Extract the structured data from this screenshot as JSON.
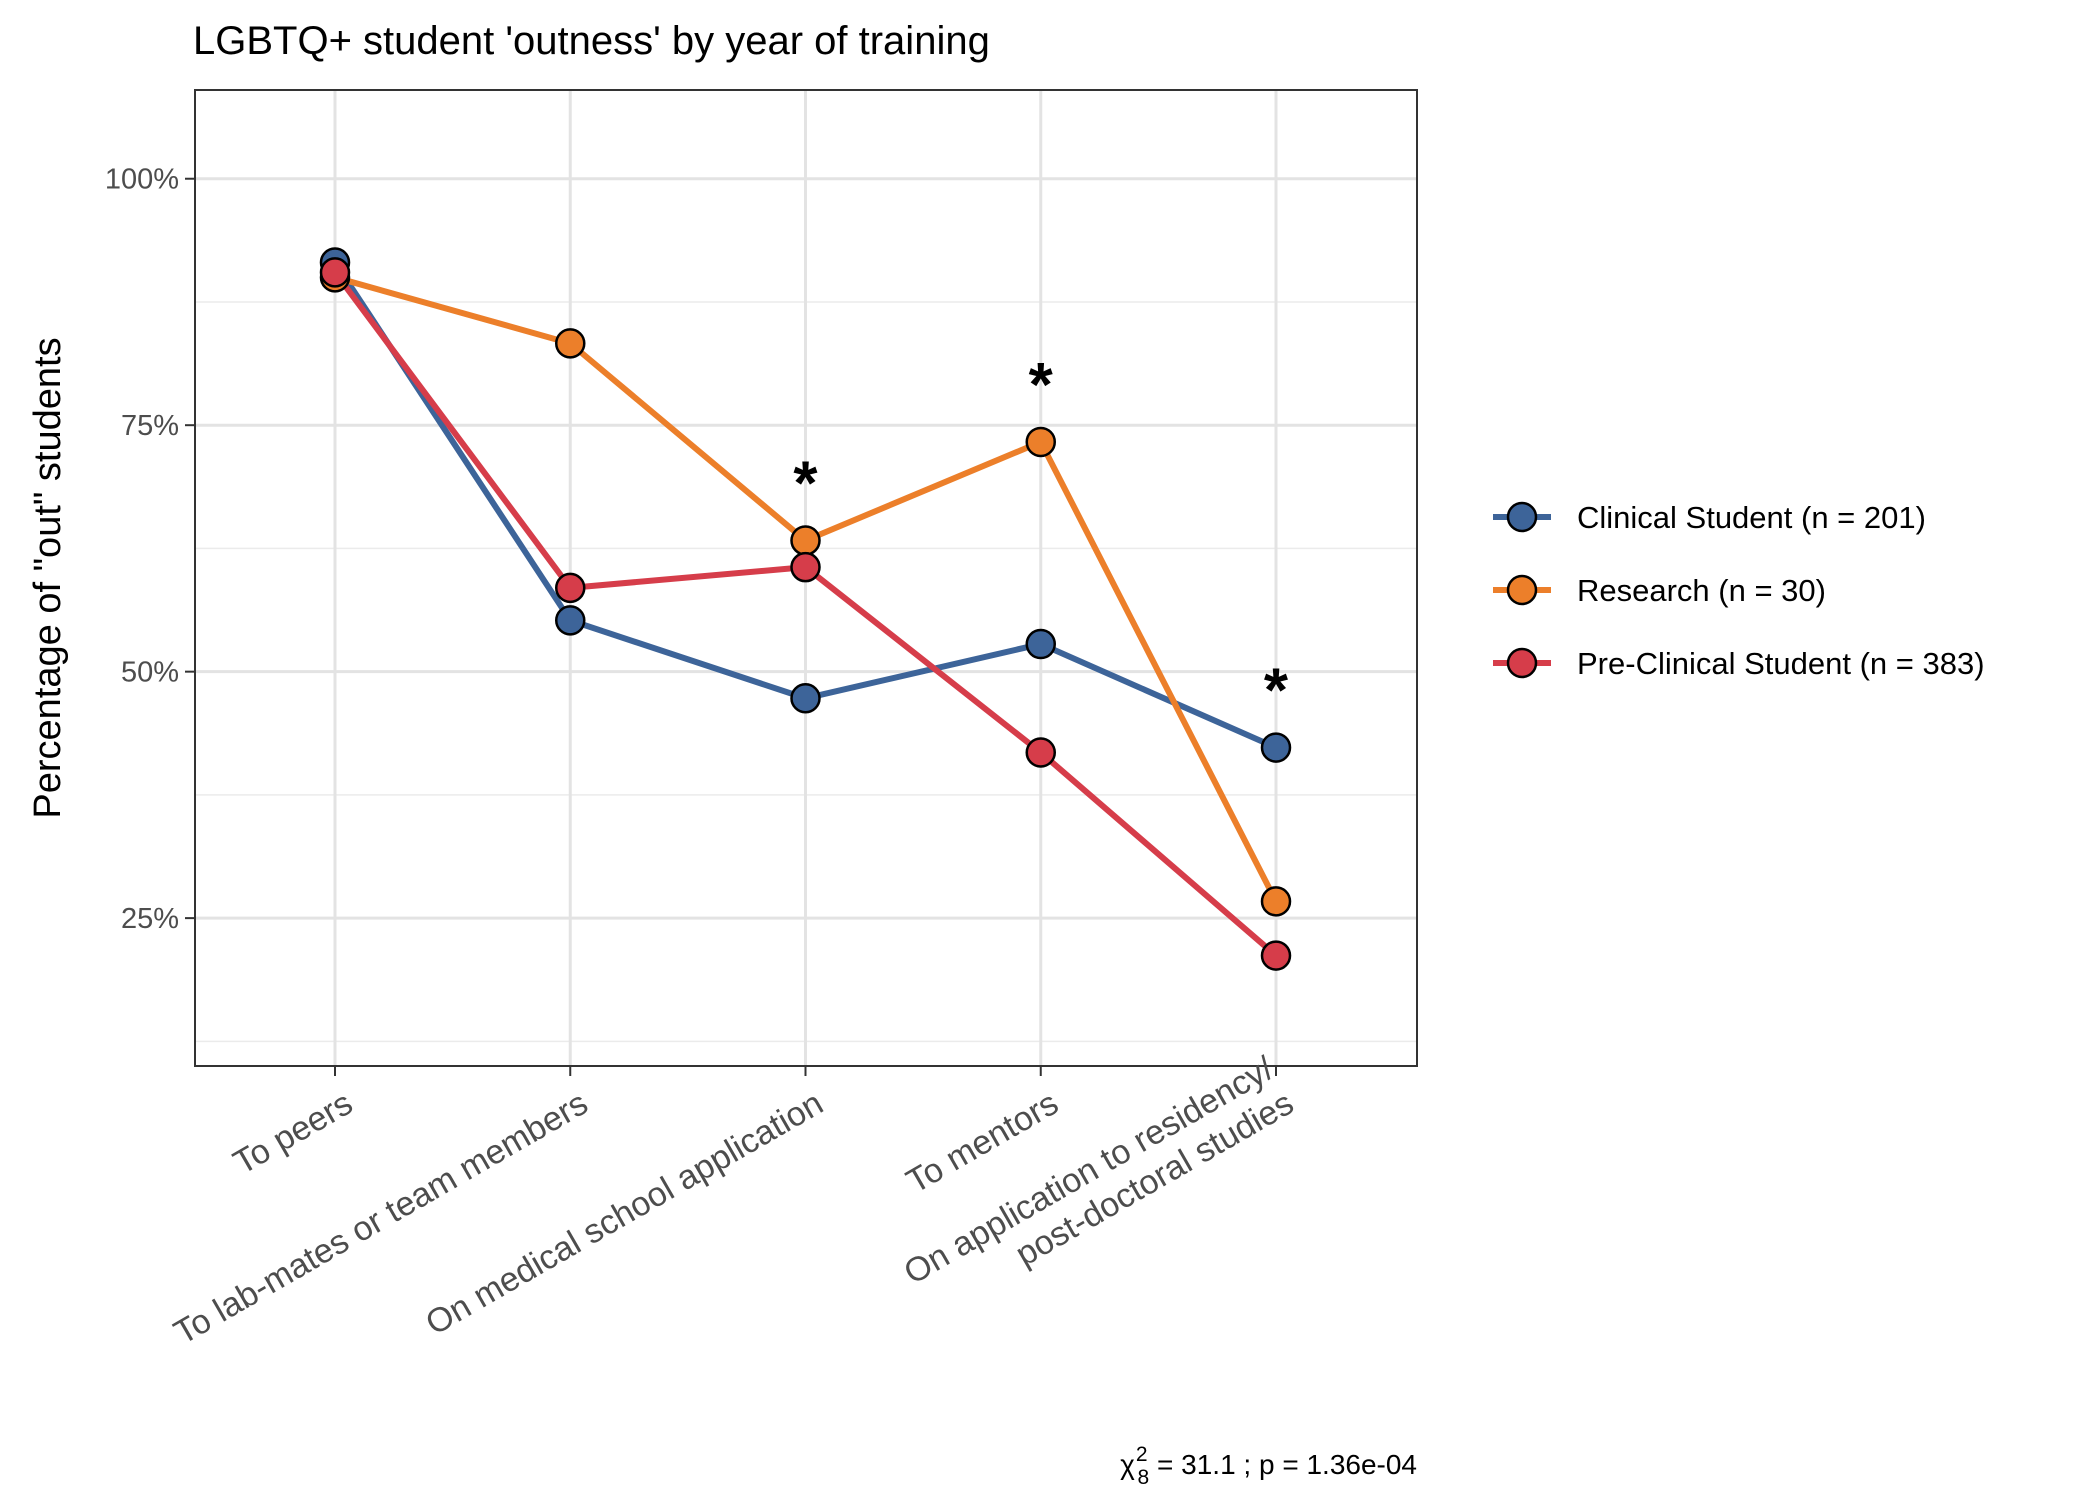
{
  "chart_data": {
    "type": "line",
    "title": "LGBTQ+ student 'outness' by year of training",
    "ylabel": "Percentage of \"out\" students",
    "xlabel": "",
    "ylim": [
      0.1,
      1.09
    ],
    "yticks": [
      {
        "value": 0.25,
        "label": "25%"
      },
      {
        "value": 0.5,
        "label": "50%"
      },
      {
        "value": 0.75,
        "label": "75%"
      },
      {
        "value": 1.0,
        "label": "100%"
      }
    ],
    "grid": true,
    "legend_position": "right",
    "categories": [
      [
        "To peers"
      ],
      [
        "To lab-mates or team members"
      ],
      [
        "On medical school application"
      ],
      [
        "To mentors"
      ],
      [
        "On application to residency/",
        "post-doctoral studies"
      ]
    ],
    "series": [
      {
        "name": "Clinical Student  (n = 201)",
        "color": "#3d6499",
        "values": [
          0.915,
          0.552,
          0.473,
          0.528,
          0.423
        ]
      },
      {
        "name": "Research  (n = 30)",
        "color": "#ec7f2a",
        "values": [
          0.9,
          0.833,
          0.633,
          0.733,
          0.267
        ]
      },
      {
        "name": "Pre-Clinical Student  (n = 383)",
        "color": "#d63d4a",
        "values": [
          0.905,
          0.585,
          0.606,
          0.418,
          0.212
        ]
      }
    ],
    "significance_markers": [
      {
        "category_index": 2,
        "value": 0.7,
        "label": "*"
      },
      {
        "category_index": 3,
        "value": 0.8,
        "label": "*"
      },
      {
        "category_index": 4,
        "value": 0.49,
        "label": "*"
      }
    ],
    "annotation": {
      "symbol": "χ",
      "superscript": "2",
      "subscript": "8",
      "text": " = 31.1 ;  p = 1.36e-04"
    }
  }
}
